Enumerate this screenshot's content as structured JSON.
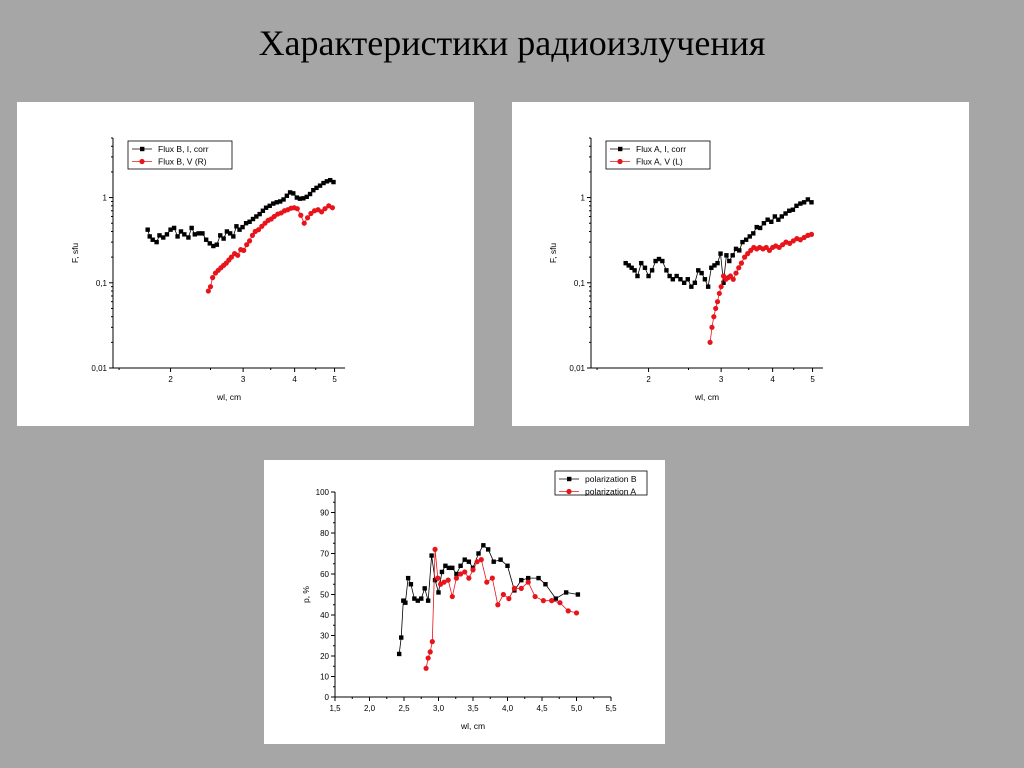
{
  "slide": {
    "title": "Характеристики радиоизлучения"
  },
  "colors": {
    "background": "#a6a6a6",
    "panel": "#ffffff",
    "series_black": "#000000",
    "series_red": "#e8141b"
  },
  "chart_data": [
    {
      "id": "flux-b",
      "type": "scatter",
      "xscale": "log",
      "yscale": "log",
      "xlabel": "wl, cm",
      "ylabel": "F, sfu",
      "xlim": [
        1.45,
        5.3
      ],
      "ylim": [
        0.01,
        5
      ],
      "xticks": [
        {
          "v": 2,
          "label": "2"
        },
        {
          "v": 3,
          "label": "3"
        },
        {
          "v": 4,
          "label": "4"
        },
        {
          "v": 5,
          "label": "5"
        }
      ],
      "yticks": [
        {
          "v": 0.01,
          "label": "0,01"
        },
        {
          "v": 0.1,
          "label": "0,1"
        },
        {
          "v": 1,
          "label": "1"
        }
      ],
      "legend_position": "top-left",
      "series": [
        {
          "name": "Flux B, I, corr",
          "color": "#000000",
          "marker": "square",
          "x": [
            1.76,
            1.78,
            1.81,
            1.85,
            1.88,
            1.92,
            1.96,
            2.0,
            2.04,
            2.08,
            2.12,
            2.16,
            2.21,
            2.25,
            2.29,
            2.34,
            2.39,
            2.44,
            2.49,
            2.54,
            2.59,
            2.64,
            2.69,
            2.74,
            2.79,
            2.84,
            2.89,
            2.94,
            2.99,
            3.05,
            3.11,
            3.17,
            3.23,
            3.29,
            3.35,
            3.41,
            3.48,
            3.55,
            3.62,
            3.69,
            3.76,
            3.83,
            3.9,
            3.97,
            4.05,
            4.12,
            4.2,
            4.28,
            4.36,
            4.44,
            4.52,
            4.61,
            4.7,
            4.79,
            4.88,
            4.97
          ],
          "y": [
            0.42,
            0.35,
            0.32,
            0.3,
            0.36,
            0.34,
            0.37,
            0.42,
            0.44,
            0.35,
            0.4,
            0.37,
            0.34,
            0.44,
            0.37,
            0.38,
            0.38,
            0.32,
            0.29,
            0.27,
            0.28,
            0.36,
            0.33,
            0.4,
            0.38,
            0.35,
            0.46,
            0.42,
            0.45,
            0.5,
            0.52,
            0.56,
            0.6,
            0.64,
            0.7,
            0.76,
            0.8,
            0.85,
            0.88,
            0.9,
            0.95,
            1.05,
            1.15,
            1.12,
            1.0,
            0.97,
            0.98,
            1.02,
            1.1,
            1.22,
            1.3,
            1.38,
            1.48,
            1.55,
            1.6,
            1.52
          ]
        },
        {
          "name": "Flux B, V (R)",
          "color": "#e8141b",
          "marker": "circle",
          "x": [
            2.47,
            2.5,
            2.53,
            2.57,
            2.61,
            2.65,
            2.69,
            2.73,
            2.77,
            2.81,
            2.86,
            2.91,
            2.96,
            3.01,
            3.06,
            3.11,
            3.16,
            3.21,
            3.27,
            3.33,
            3.39,
            3.45,
            3.51,
            3.57,
            3.64,
            3.71,
            3.78,
            3.85,
            3.92,
            3.99,
            4.06,
            4.14,
            4.22,
            4.3,
            4.38,
            4.47,
            4.56,
            4.65,
            4.74,
            4.84,
            4.94
          ],
          "y": [
            0.08,
            0.09,
            0.115,
            0.13,
            0.14,
            0.15,
            0.16,
            0.17,
            0.185,
            0.2,
            0.22,
            0.21,
            0.245,
            0.24,
            0.28,
            0.31,
            0.36,
            0.4,
            0.42,
            0.46,
            0.5,
            0.54,
            0.56,
            0.6,
            0.64,
            0.66,
            0.7,
            0.72,
            0.75,
            0.76,
            0.74,
            0.62,
            0.5,
            0.58,
            0.65,
            0.7,
            0.72,
            0.68,
            0.74,
            0.8,
            0.76
          ]
        }
      ]
    },
    {
      "id": "flux-a",
      "type": "scatter",
      "xscale": "log",
      "yscale": "log",
      "xlabel": "wl, cm",
      "ylabel": "F, sfu",
      "xlim": [
        1.45,
        5.3
      ],
      "ylim": [
        0.01,
        5
      ],
      "xticks": [
        {
          "v": 2,
          "label": "2"
        },
        {
          "v": 3,
          "label": "3"
        },
        {
          "v": 4,
          "label": "4"
        },
        {
          "v": 5,
          "label": "5"
        }
      ],
      "yticks": [
        {
          "v": 0.01,
          "label": "0,01"
        },
        {
          "v": 0.1,
          "label": "0,1"
        },
        {
          "v": 1,
          "label": "1"
        }
      ],
      "legend_position": "top-left",
      "series": [
        {
          "name": "Flux A, I, corr",
          "color": "#000000",
          "marker": "square",
          "x": [
            1.76,
            1.79,
            1.82,
            1.85,
            1.88,
            1.92,
            1.96,
            2.0,
            2.04,
            2.08,
            2.12,
            2.16,
            2.21,
            2.25,
            2.29,
            2.34,
            2.39,
            2.44,
            2.49,
            2.54,
            2.59,
            2.64,
            2.69,
            2.74,
            2.79,
            2.84,
            2.89,
            2.94,
            2.99,
            3.04,
            3.09,
            3.14,
            3.2,
            3.26,
            3.32,
            3.38,
            3.45,
            3.52,
            3.59,
            3.66,
            3.73,
            3.81,
            3.89,
            3.97,
            4.05,
            4.13,
            4.21,
            4.3,
            4.39,
            4.48,
            4.57,
            4.67,
            4.77,
            4.87,
            4.97
          ],
          "y": [
            0.17,
            0.16,
            0.15,
            0.14,
            0.12,
            0.17,
            0.15,
            0.12,
            0.14,
            0.18,
            0.19,
            0.18,
            0.14,
            0.12,
            0.11,
            0.12,
            0.11,
            0.1,
            0.11,
            0.09,
            0.1,
            0.14,
            0.13,
            0.11,
            0.09,
            0.15,
            0.16,
            0.17,
            0.22,
            0.1,
            0.21,
            0.18,
            0.21,
            0.25,
            0.24,
            0.3,
            0.32,
            0.35,
            0.38,
            0.45,
            0.44,
            0.5,
            0.55,
            0.52,
            0.6,
            0.55,
            0.6,
            0.65,
            0.7,
            0.72,
            0.8,
            0.85,
            0.88,
            0.95,
            0.88
          ]
        },
        {
          "name": "Flux A, V (L)",
          "color": "#e8141b",
          "marker": "circle",
          "x": [
            2.82,
            2.85,
            2.88,
            2.91,
            2.94,
            2.97,
            3.0,
            3.04,
            3.08,
            3.12,
            3.16,
            3.21,
            3.26,
            3.31,
            3.36,
            3.42,
            3.48,
            3.54,
            3.6,
            3.66,
            3.72,
            3.79,
            3.86,
            3.93,
            4.0,
            4.07,
            4.15,
            4.23,
            4.31,
            4.4,
            4.49,
            4.58,
            4.67,
            4.77,
            4.87,
            4.97
          ],
          "y": [
            0.02,
            0.03,
            0.04,
            0.05,
            0.06,
            0.075,
            0.09,
            0.12,
            0.11,
            0.115,
            0.12,
            0.11,
            0.13,
            0.15,
            0.17,
            0.2,
            0.22,
            0.24,
            0.26,
            0.25,
            0.26,
            0.25,
            0.26,
            0.24,
            0.26,
            0.27,
            0.26,
            0.28,
            0.3,
            0.29,
            0.31,
            0.33,
            0.32,
            0.34,
            0.36,
            0.37
          ]
        }
      ]
    },
    {
      "id": "polarization",
      "type": "line",
      "xscale": "linear",
      "yscale": "linear",
      "xlabel": "wl, cm",
      "ylabel": "p, %",
      "xlim": [
        1.5,
        5.5
      ],
      "ylim": [
        0,
        100
      ],
      "xticks": [
        {
          "v": 1.5,
          "label": "1,5"
        },
        {
          "v": 2.0,
          "label": "2,0"
        },
        {
          "v": 2.5,
          "label": "2,5"
        },
        {
          "v": 3.0,
          "label": "3,0"
        },
        {
          "v": 3.5,
          "label": "3,5"
        },
        {
          "v": 4.0,
          "label": "4,0"
        },
        {
          "v": 4.5,
          "label": "4,5"
        },
        {
          "v": 5.0,
          "label": "5,0"
        },
        {
          "v": 5.5,
          "label": "5,5"
        }
      ],
      "yticks": [
        {
          "v": 0,
          "label": "0"
        },
        {
          "v": 10,
          "label": "10"
        },
        {
          "v": 20,
          "label": "20"
        },
        {
          "v": 30,
          "label": "30"
        },
        {
          "v": 40,
          "label": "40"
        },
        {
          "v": 50,
          "label": "50"
        },
        {
          "v": 60,
          "label": "60"
        },
        {
          "v": 70,
          "label": "70"
        },
        {
          "v": 80,
          "label": "80"
        },
        {
          "v": 90,
          "label": "90"
        },
        {
          "v": 100,
          "label": "100"
        }
      ],
      "legend_position": "top-right",
      "series": [
        {
          "name": "polarization B",
          "color": "#000000",
          "marker": "square",
          "x": [
            2.43,
            2.46,
            2.49,
            2.52,
            2.56,
            2.6,
            2.65,
            2.7,
            2.75,
            2.8,
            2.85,
            2.9,
            2.95,
            3.0,
            3.05,
            3.1,
            3.15,
            3.2,
            3.26,
            3.32,
            3.38,
            3.44,
            3.5,
            3.58,
            3.65,
            3.72,
            3.8,
            3.9,
            4.0,
            4.1,
            4.2,
            4.3,
            4.45,
            4.55,
            4.7,
            4.85,
            5.02
          ],
          "y": [
            21,
            29,
            47,
            46,
            58,
            55,
            48,
            47,
            48,
            53,
            47,
            69,
            57,
            51,
            61,
            64,
            63,
            63,
            60,
            64,
            67,
            66,
            63,
            70,
            74,
            72,
            66,
            67,
            64,
            52,
            57,
            58,
            58,
            55,
            48,
            51,
            50
          ]
        },
        {
          "name": "polarization A",
          "color": "#e8141b",
          "marker": "circle",
          "x": [
            2.82,
            2.85,
            2.88,
            2.91,
            2.95,
            2.99,
            3.03,
            3.08,
            3.14,
            3.2,
            3.26,
            3.32,
            3.38,
            3.44,
            3.5,
            3.56,
            3.62,
            3.7,
            3.78,
            3.86,
            3.94,
            4.02,
            4.1,
            4.2,
            4.3,
            4.4,
            4.52,
            4.64,
            4.76,
            4.88,
            5.0
          ],
          "y": [
            14,
            19,
            22,
            27,
            72,
            58,
            55,
            56,
            57,
            49,
            58,
            60,
            61,
            58,
            62,
            66,
            67,
            56,
            58,
            45,
            50,
            48,
            53,
            53,
            56,
            49,
            47,
            47,
            46,
            42,
            41
          ]
        }
      ]
    }
  ]
}
